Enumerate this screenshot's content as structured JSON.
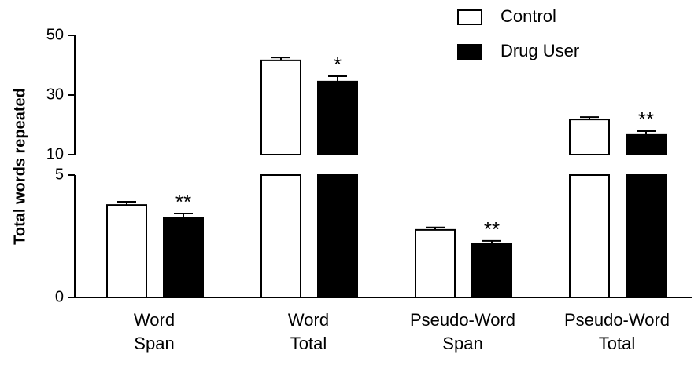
{
  "chart_data": {
    "type": "bar",
    "y_label": "Total words repeated",
    "categories": [
      [
        "Word",
        "Span"
      ],
      [
        "Word",
        "Total"
      ],
      [
        "Pseudo-Word",
        "Span"
      ],
      [
        "Pseudo-Word",
        "Total"
      ]
    ],
    "y_segments": [
      {
        "ylim": [
          0,
          5
        ],
        "yticks": [
          0,
          5
        ]
      },
      {
        "ylim": [
          10,
          50
        ],
        "yticks": [
          10,
          30,
          50
        ]
      }
    ],
    "legend": "upper right",
    "series": [
      {
        "name": "Control",
        "color": "#ffffff",
        "values": [
          3.78,
          41.6,
          2.76,
          21.8
        ],
        "errors": [
          0.13,
          1.0,
          0.1,
          0.8
        ]
      },
      {
        "name": "Drug User",
        "color": "#000000",
        "values": [
          3.27,
          34.5,
          2.18,
          16.6
        ],
        "errors": [
          0.16,
          1.8,
          0.13,
          1.3
        ],
        "annotations": [
          "**",
          "*",
          "**",
          "**"
        ]
      }
    ]
  }
}
